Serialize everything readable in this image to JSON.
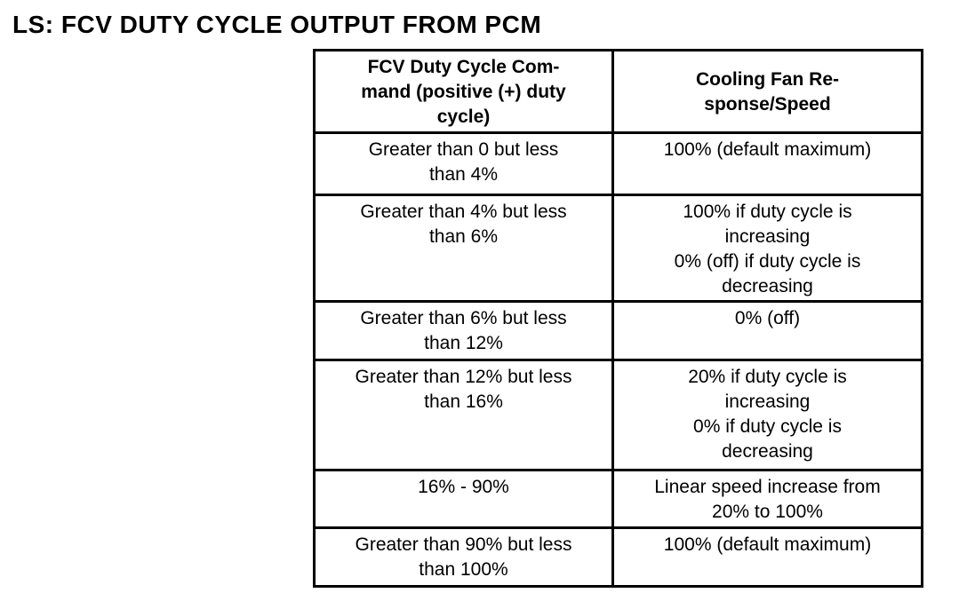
{
  "page_title": "LS: FCV DUTY CYCLE OUTPUT FROM PCM",
  "table": {
    "headers": {
      "command": "FCV Duty Cycle Com-\nmand (positive (+) duty\ncycle)",
      "response": "Cooling Fan Re-\nsponse/Speed"
    },
    "rows": [
      {
        "command": "Greater than 0 but less\nthan 4%",
        "response": "100% (default maximum)"
      },
      {
        "command": "Greater than 4% but less\nthan 6%",
        "response": "100% if duty cycle is\nincreasing\n0% (off) if duty cycle is\ndecreasing"
      },
      {
        "command": "Greater than 6% but less\nthan 12%",
        "response": "0% (off)"
      },
      {
        "command": "Greater than 12% but less\nthan 16%",
        "response": "20% if duty cycle is\nincreasing\n0% if duty cycle is\ndecreasing"
      },
      {
        "command": "16% - 90%",
        "response": "Linear speed increase from\n20% to 100%"
      },
      {
        "command": "Greater than 90% but less\nthan 100%",
        "response": "100% (default maximum)"
      }
    ],
    "colors": {
      "border": "#000000",
      "text": "#000000",
      "background": "#ffffff"
    }
  }
}
